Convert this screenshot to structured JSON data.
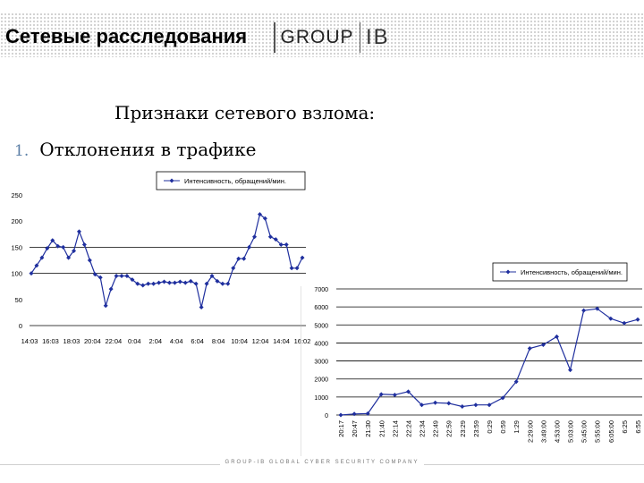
{
  "header": {
    "title": "Сетевые расследования",
    "logo_group": "GROUP",
    "logo_ib": "IB"
  },
  "heading": "Признаки сетевого взлома:",
  "list": [
    {
      "number": "1.",
      "text": "Отклонения в трафике"
    }
  ],
  "footer": "GROUP-IB GLOBAL CYBER SECURITY COMPANY",
  "colors": {
    "series": "#1f2f9e",
    "grid": "#000000"
  },
  "chart_data": [
    {
      "type": "line",
      "legend": "Интенсивность, обращений/мин.",
      "legend_position": "top",
      "ylim": [
        0,
        250
      ],
      "yticks": [
        "0",
        "50",
        "100",
        "150",
        "200",
        "250"
      ],
      "grid": true,
      "tick_labels": [
        "14:03",
        "16:03",
        "18:03",
        "20:04",
        "22:04",
        "0:04",
        "2:04",
        "4:04",
        "6:04",
        "8:04",
        "10:04",
        "12:04",
        "14:04",
        "16:02"
      ],
      "values": [
        100,
        115,
        130,
        148,
        163,
        152,
        150,
        130,
        143,
        180,
        155,
        125,
        98,
        92,
        38,
        70,
        95,
        95,
        95,
        88,
        80,
        77,
        80,
        80,
        82,
        84,
        82,
        82,
        84,
        82,
        85,
        80,
        35,
        80,
        95,
        85,
        80,
        80,
        110,
        128,
        128,
        150,
        170,
        213,
        205,
        170,
        165,
        155,
        155,
        110,
        110,
        130
      ]
    },
    {
      "type": "line",
      "legend": "Интенсивность, обращений/мин.",
      "legend_position": "top-right",
      "ylim": [
        0,
        7000
      ],
      "yticks": [
        "0",
        "1000",
        "2000",
        "3000",
        "4000",
        "5000",
        "6000",
        "7000"
      ],
      "grid": true,
      "categories": [
        "20:17",
        "20:47",
        "21:30",
        "21:40",
        "22:14",
        "22:24",
        "22:34",
        "22:49",
        "22:59",
        "23:29",
        "23:59",
        "0:29",
        "0:59",
        "1:29",
        "2:29:00",
        "3:49:00",
        "4:53:00",
        "5:03:00",
        "5:45:00",
        "5:55:00",
        "6:05:00",
        "6:25",
        "6:55"
      ],
      "values": [
        0,
        60,
        80,
        1150,
        1120,
        1300,
        560,
        680,
        650,
        470,
        560,
        560,
        950,
        1850,
        3700,
        3900,
        4350,
        2500,
        5800,
        5900,
        5350,
        5100,
        5300
      ]
    }
  ]
}
